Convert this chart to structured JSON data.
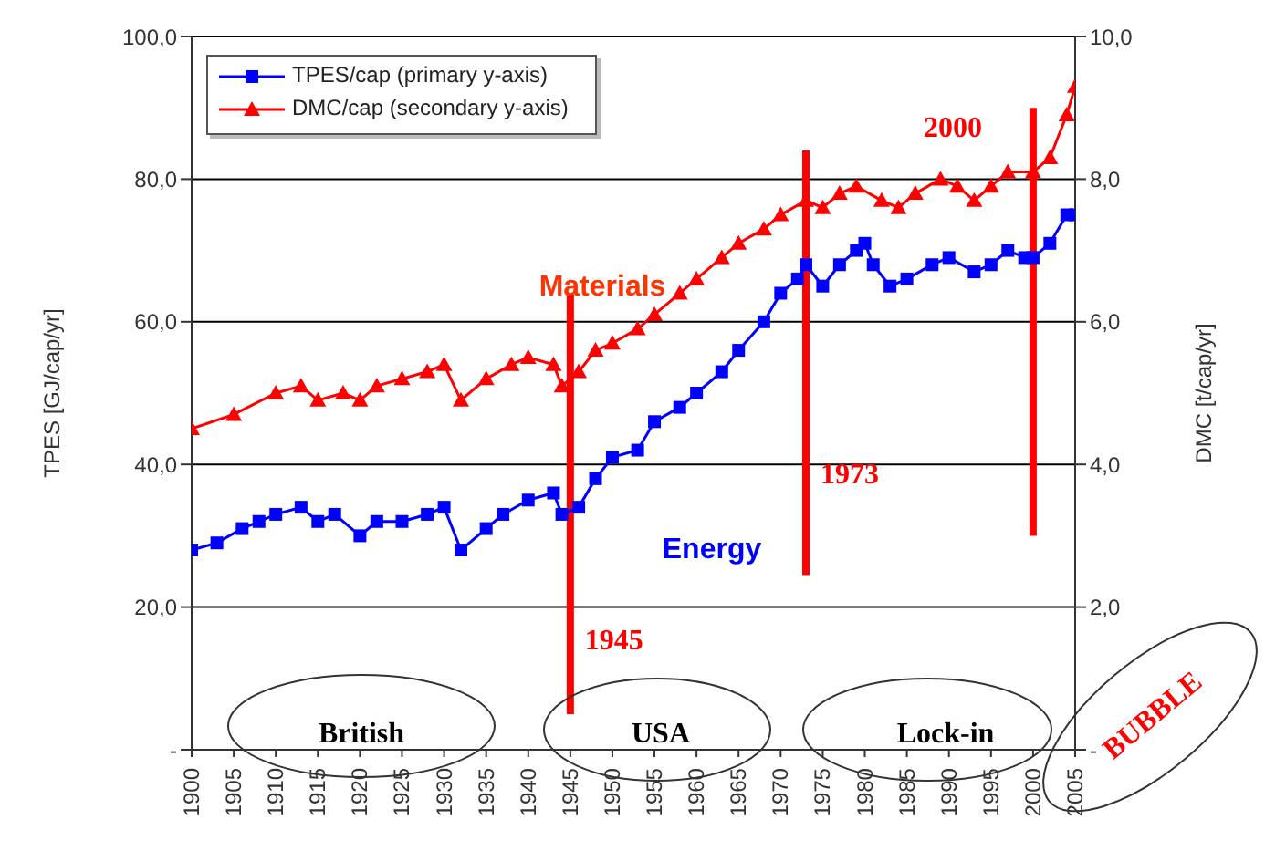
{
  "chart_data": {
    "type": "line",
    "xlabel": null,
    "ylabel": "TPES [GJ/cap/yr]",
    "y2label": "DMC [t/cap/yr]",
    "xlim": [
      1900,
      2005
    ],
    "xticks": [
      1900,
      1905,
      1910,
      1915,
      1920,
      1925,
      1930,
      1935,
      1940,
      1945,
      1950,
      1955,
      1960,
      1965,
      1970,
      1975,
      1980,
      1985,
      1990,
      1995,
      2000,
      2005
    ],
    "ylim": [
      0,
      100
    ],
    "yticks": [
      {
        "value": 0,
        "label": "-"
      },
      {
        "value": 20,
        "label": "20,0"
      },
      {
        "value": 40,
        "label": "40,0"
      },
      {
        "value": 60,
        "label": "60,0"
      },
      {
        "value": 80,
        "label": "80,0"
      },
      {
        "value": 100,
        "label": "100,0"
      }
    ],
    "y2lim": [
      0,
      10
    ],
    "y2ticks": [
      {
        "value": 0,
        "label": "-"
      },
      {
        "value": 2,
        "label": "2,0"
      },
      {
        "value": 4,
        "label": "4,0"
      },
      {
        "value": 6,
        "label": "6,0"
      },
      {
        "value": 8,
        "label": "8,0"
      },
      {
        "value": 10,
        "label": "10,0"
      }
    ],
    "grid": "y",
    "legend": "top left",
    "series": [
      {
        "name": "TPES/cap (primary y-axis)",
        "color": "#0000ff",
        "marker": "square",
        "x": [
          1900,
          1903,
          1906,
          1908,
          1910,
          1913,
          1915,
          1917,
          1920,
          1922,
          1925,
          1928,
          1930,
          1932,
          1935,
          1937,
          1940,
          1943,
          1944,
          1946,
          1948,
          1950,
          1953,
          1955,
          1958,
          1960,
          1963,
          1965,
          1968,
          1970,
          1972,
          1973,
          1975,
          1977,
          1979,
          1980,
          1981,
          1983,
          1985,
          1988,
          1990,
          1993,
          1995,
          1997,
          1999,
          2000,
          2002,
          2004,
          2005
        ],
        "values": [
          28,
          29,
          31,
          32,
          33,
          34,
          32,
          33,
          30,
          32,
          32,
          33,
          34,
          28,
          31,
          33,
          35,
          36,
          33,
          34,
          38,
          41,
          42,
          46,
          48,
          50,
          53,
          56,
          60,
          64,
          66,
          68,
          65,
          68,
          70,
          71,
          68,
          65,
          66,
          68,
          69,
          67,
          68,
          70,
          69,
          69,
          71,
          75,
          75
        ]
      },
      {
        "name": "DMC/cap (secondary y-axis)",
        "color": "#ff0000",
        "marker": "triangle",
        "axis": "y2",
        "x": [
          1900,
          1905,
          1910,
          1913,
          1915,
          1918,
          1920,
          1922,
          1925,
          1928,
          1930,
          1932,
          1935,
          1938,
          1940,
          1943,
          1944,
          1946,
          1948,
          1950,
          1953,
          1955,
          1958,
          1960,
          1963,
          1965,
          1968,
          1970,
          1973,
          1975,
          1977,
          1979,
          1982,
          1984,
          1986,
          1989,
          1991,
          1993,
          1995,
          1997,
          2000,
          2002,
          2004,
          2005
        ],
        "values": [
          4.5,
          4.7,
          5.0,
          5.1,
          4.9,
          5.0,
          4.9,
          5.1,
          5.2,
          5.3,
          5.4,
          4.9,
          5.2,
          5.4,
          5.5,
          5.4,
          5.1,
          5.3,
          5.6,
          5.7,
          5.9,
          6.1,
          6.4,
          6.6,
          6.9,
          7.1,
          7.3,
          7.5,
          7.7,
          7.6,
          7.8,
          7.9,
          7.7,
          7.6,
          7.8,
          8.0,
          7.9,
          7.7,
          7.9,
          8.1,
          8.1,
          8.3,
          8.9,
          9.3
        ]
      }
    ],
    "ref_lines": [
      {
        "axis": "x",
        "value": 1945,
        "label": "1945",
        "color": "#ff0000"
      },
      {
        "axis": "x",
        "value": 1973,
        "label": "1973",
        "color": "#ff0000"
      },
      {
        "axis": "x",
        "value": 2000,
        "label": "2000",
        "color": "#ff0000"
      }
    ],
    "annotations": [
      "Materials",
      "Energy",
      "British",
      "USA",
      "Lock-in",
      "BUBBLE"
    ]
  }
}
